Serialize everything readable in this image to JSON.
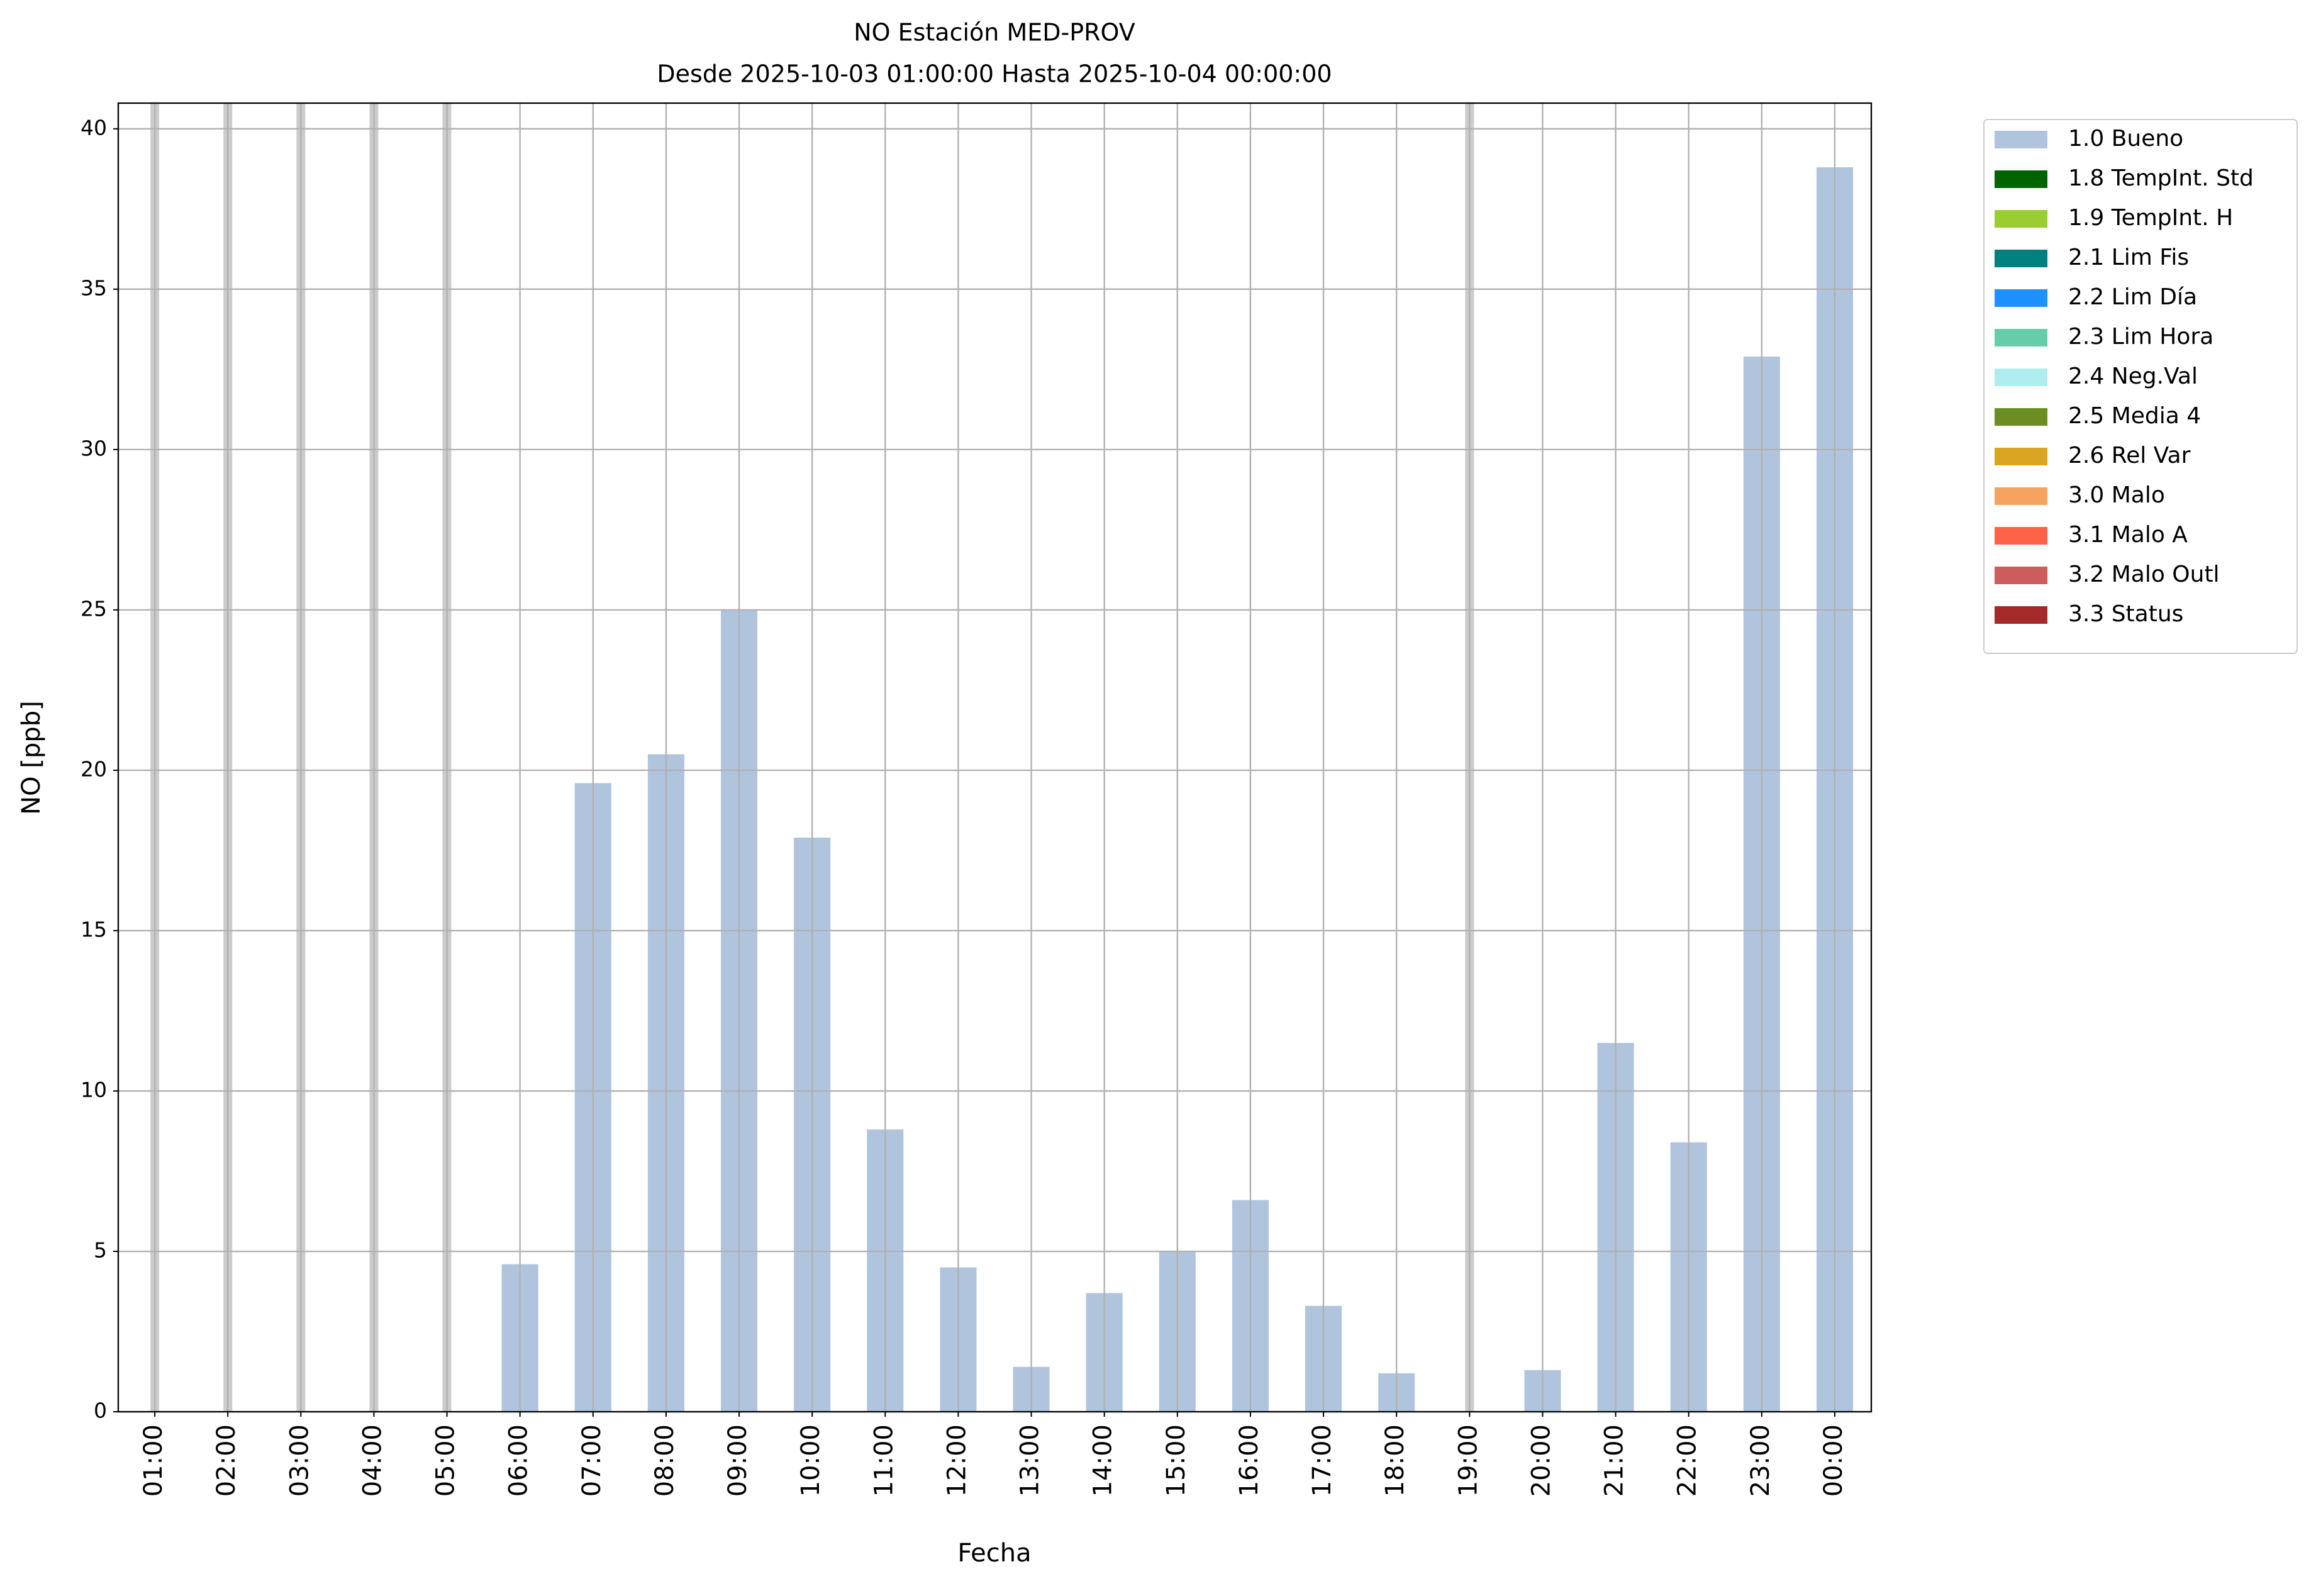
{
  "chart_data": {
    "type": "bar",
    "title": "NO Estación MED-PROV",
    "subtitle": "Desde 2025-10-03 01:00:00 Hasta 2025-10-04 00:00:00",
    "x_label": "Fecha",
    "y_label": "NO [ppb]",
    "categories": [
      "01:00",
      "02:00",
      "03:00",
      "04:00",
      "05:00",
      "06:00",
      "07:00",
      "08:00",
      "09:00",
      "10:00",
      "11:00",
      "12:00",
      "13:00",
      "14:00",
      "15:00",
      "16:00",
      "17:00",
      "18:00",
      "19:00",
      "20:00",
      "21:00",
      "22:00",
      "23:00",
      "00:00"
    ],
    "series": [
      {
        "name": "1.0 Bueno",
        "color": "#b0c4de",
        "values": [
          null,
          null,
          null,
          null,
          null,
          4.6,
          19.6,
          20.5,
          25.0,
          17.9,
          8.8,
          4.5,
          1.4,
          3.7,
          5.0,
          6.6,
          3.3,
          1.2,
          null,
          1.3,
          11.5,
          8.4,
          32.9,
          38.8
        ]
      },
      {
        "name": "1.8 TempInt. Std",
        "color": "#006400",
        "values": [
          null,
          null,
          null,
          null,
          null,
          null,
          null,
          null,
          null,
          null,
          null,
          null,
          null,
          null,
          null,
          null,
          null,
          null,
          null,
          null,
          null,
          null,
          null,
          null
        ]
      },
      {
        "name": "1.9 TempInt. H",
        "color": "#9acd32",
        "values": [
          null,
          null,
          null,
          null,
          null,
          null,
          null,
          null,
          null,
          null,
          null,
          null,
          null,
          null,
          null,
          null,
          null,
          null,
          null,
          null,
          null,
          null,
          null,
          null
        ]
      },
      {
        "name": "2.1 Lim Fis",
        "color": "#008080",
        "values": [
          null,
          null,
          null,
          null,
          null,
          null,
          null,
          null,
          null,
          null,
          null,
          null,
          null,
          null,
          null,
          null,
          null,
          null,
          null,
          null,
          null,
          null,
          null,
          null
        ]
      },
      {
        "name": "2.2 Lim Día",
        "color": "#1e90ff",
        "values": [
          null,
          null,
          null,
          null,
          null,
          null,
          null,
          null,
          null,
          null,
          null,
          null,
          null,
          null,
          null,
          null,
          null,
          null,
          null,
          null,
          null,
          null,
          null,
          null
        ]
      },
      {
        "name": "2.3 Lim Hora",
        "color": "#66cdaa",
        "values": [
          null,
          null,
          null,
          null,
          null,
          null,
          null,
          null,
          null,
          null,
          null,
          null,
          null,
          null,
          null,
          null,
          null,
          null,
          null,
          null,
          null,
          null,
          null,
          null
        ]
      },
      {
        "name": "2.4 Neg.Val",
        "color": "#afeeee",
        "values": [
          null,
          null,
          null,
          null,
          null,
          null,
          null,
          null,
          null,
          null,
          null,
          null,
          null,
          null,
          null,
          null,
          null,
          null,
          null,
          null,
          null,
          null,
          null,
          null
        ]
      },
      {
        "name": "2.5 Media 4",
        "color": "#6b8e23",
        "values": [
          null,
          null,
          null,
          null,
          null,
          null,
          null,
          null,
          null,
          null,
          null,
          null,
          null,
          null,
          null,
          null,
          null,
          null,
          null,
          null,
          null,
          null,
          null,
          null
        ]
      },
      {
        "name": "2.6 Rel Var",
        "color": "#daa520",
        "values": [
          null,
          null,
          null,
          null,
          null,
          null,
          null,
          null,
          null,
          null,
          null,
          null,
          null,
          null,
          null,
          null,
          null,
          null,
          null,
          null,
          null,
          null,
          null,
          null
        ]
      },
      {
        "name": "3.0 Malo",
        "color": "#f4a460",
        "values": [
          null,
          null,
          null,
          null,
          null,
          null,
          null,
          null,
          null,
          null,
          null,
          null,
          null,
          null,
          null,
          null,
          null,
          null,
          null,
          null,
          null,
          null,
          null,
          null
        ]
      },
      {
        "name": "3.1 Malo A",
        "color": "#ff6347",
        "values": [
          null,
          null,
          null,
          null,
          null,
          null,
          null,
          null,
          null,
          null,
          null,
          null,
          null,
          null,
          null,
          null,
          null,
          null,
          null,
          null,
          null,
          null,
          null,
          null
        ]
      },
      {
        "name": "3.2 Malo Outl",
        "color": "#cd5c5c",
        "values": [
          null,
          null,
          null,
          null,
          null,
          null,
          null,
          null,
          null,
          null,
          null,
          null,
          null,
          null,
          null,
          null,
          null,
          null,
          null,
          null,
          null,
          null,
          null,
          null
        ]
      },
      {
        "name": "3.3 Status",
        "color": "#a52a2a",
        "values": [
          null,
          null,
          null,
          null,
          null,
          null,
          null,
          null,
          null,
          null,
          null,
          null,
          null,
          null,
          null,
          null,
          null,
          null,
          null,
          null,
          null,
          null,
          null,
          null
        ]
      }
    ],
    "ylim": [
      0,
      40.8
    ],
    "yticks": [
      0,
      5,
      10,
      15,
      20,
      25,
      30,
      35,
      40
    ],
    "grid": true,
    "legend": "outside-upper-right"
  }
}
